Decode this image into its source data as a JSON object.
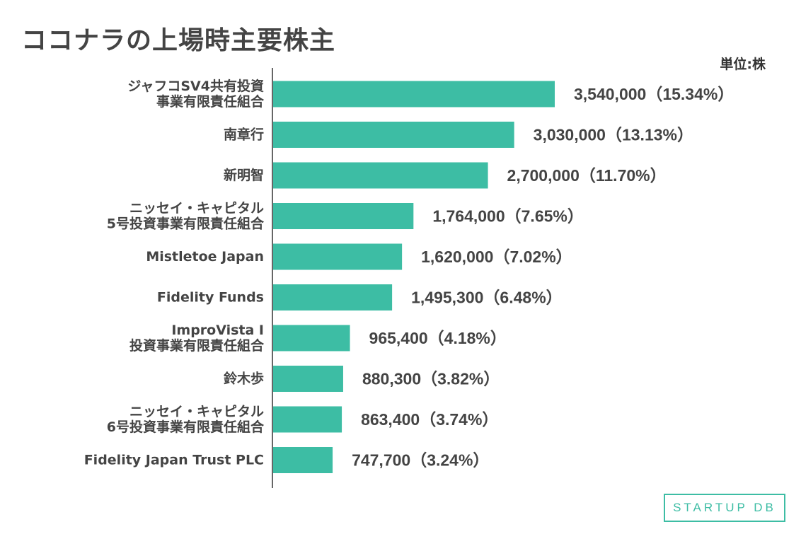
{
  "title": "ココナラの上場時主要株主",
  "unit_label": "単位:株",
  "logo_text": "STARTUP DB",
  "colors": {
    "bar": "#3dbda4",
    "axis": "#333333",
    "text": "#444444"
  },
  "chart_data": {
    "type": "bar",
    "orientation": "horizontal",
    "categories": [
      [
        "ジャフコSV4共有投資",
        "事業有限責任組合"
      ],
      [
        "南章行"
      ],
      [
        "新明智"
      ],
      [
        "ニッセイ・キャピタル",
        "5号投資事業有限責任組合"
      ],
      [
        "Mistletoe Japan"
      ],
      [
        "Fidelity Funds"
      ],
      [
        "ImproVista I",
        "投資事業有限責任組合"
      ],
      [
        "鈴木歩"
      ],
      [
        "ニッセイ・キャピタル",
        "6号投資事業有限責任組合"
      ],
      [
        "Fidelity Japan Trust PLC"
      ]
    ],
    "values": [
      3540000,
      3030000,
      2700000,
      1764000,
      1620000,
      1495300,
      965400,
      880300,
      863400,
      747700
    ],
    "data_labels": [
      "3,540,000（15.34%）",
      "3,030,000（13.13%）",
      "2,700,000（11.70%）",
      "1,764,000（7.65%）",
      "1,620,000（7.02%）",
      "1,495,300（6.48%）",
      "965,400（4.18%）",
      "880,300（3.82%）",
      "863,400（3.74%）",
      "747,700（3.24%）"
    ],
    "xlim": [
      0,
      3540000
    ],
    "grid": false,
    "legend": "none"
  }
}
